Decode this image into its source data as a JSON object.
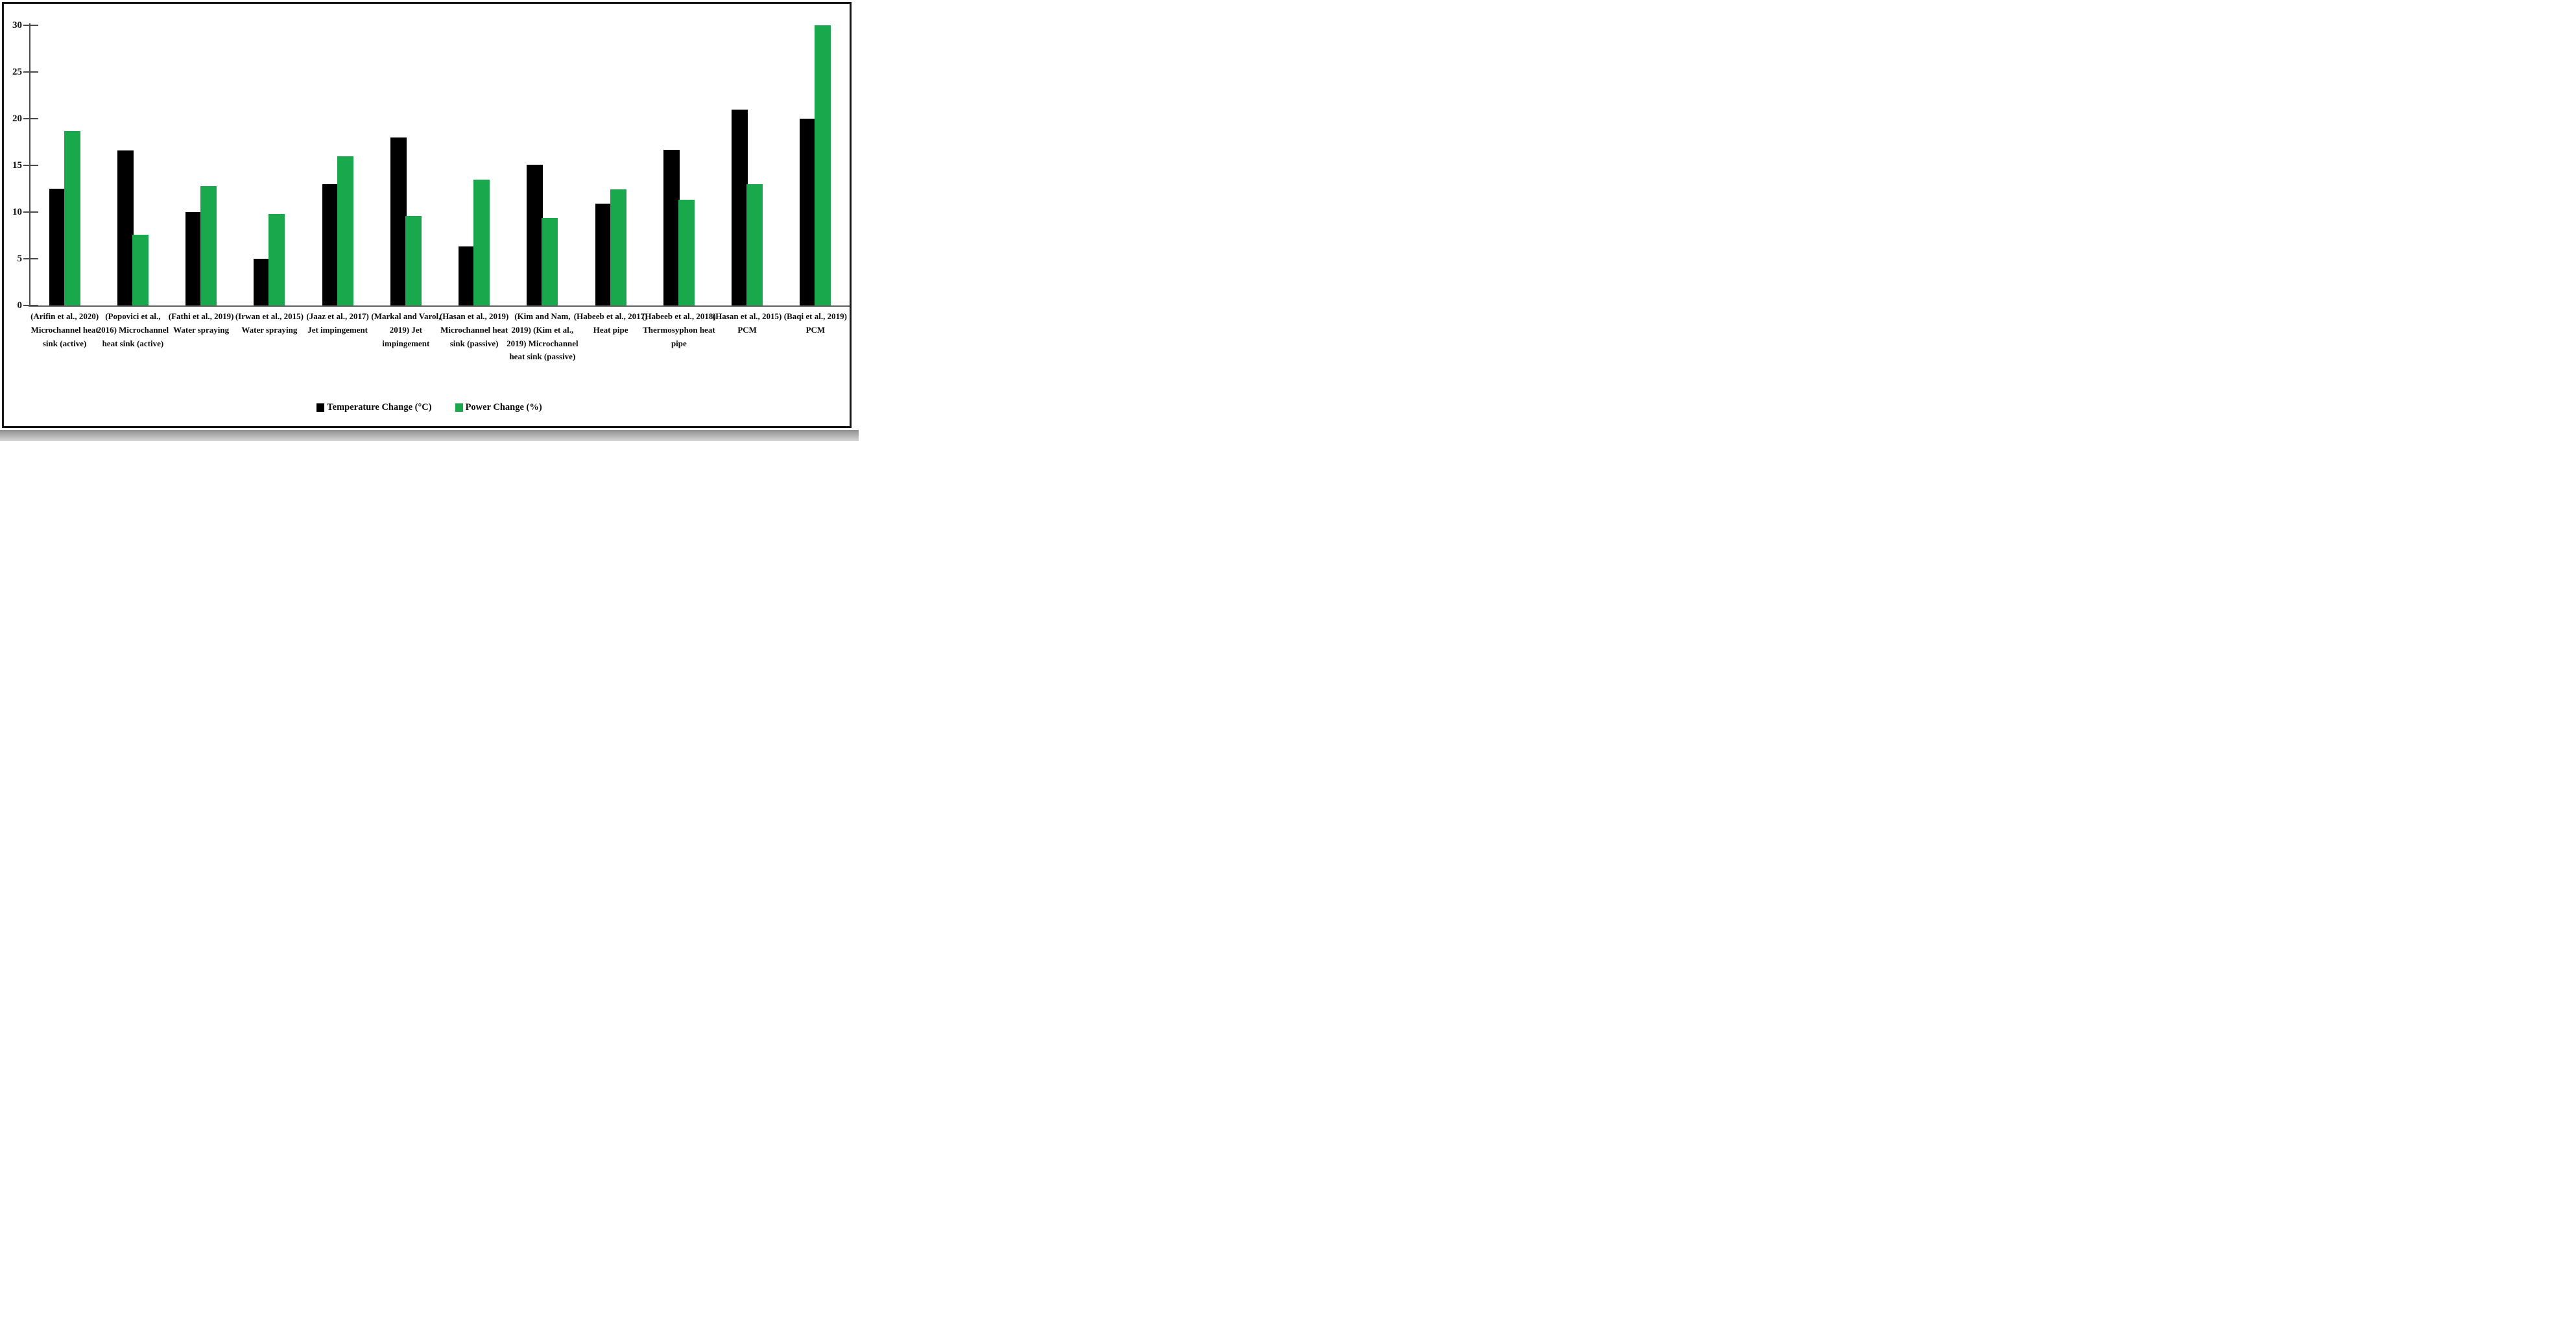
{
  "figure": {
    "legend": [
      {
        "label": "Temperature Change (°C)",
        "color": "#000000"
      },
      {
        "label": "Power Change (%)",
        "color": "#1aa84d"
      }
    ]
  },
  "chart_data": {
    "type": "bar",
    "title": "",
    "xlabel": "",
    "ylabel": "",
    "ylim": [
      0,
      30
    ],
    "yticks": [
      0,
      5,
      10,
      15,
      20,
      25,
      30
    ],
    "grid": false,
    "legend_position": "bottom",
    "categories": [
      "(Arifin et al., 2020) Microchannel heat sink (active)",
      "(Popovici et al., 2016) Microchannel heat sink (active)",
      "(Fathi et al., 2019) Water spraying",
      "(Irwan et al., 2015) Water spraying",
      "(Jaaz et al., 2017) Jet impingement",
      "(Markal and Varol, 2019) Jet impingement",
      "(Hasan et al., 2019) Microchannel heat sink (passive)",
      "(Kim and Nam, 2019) (Kim et al., 2019) Microchannel heat sink (passive)",
      "(Habeeb et al., 2017) Heat pipe",
      "(Habeeb et al., 2018) Thermosyphon heat pipe",
      "(Hasan et al., 2015) PCM",
      "(Baqi et al., 2019) PCM"
    ],
    "series": [
      {
        "name": "Temperature Change (°C)",
        "color": "#000000",
        "values": [
          12.5,
          16.6,
          10,
          5,
          13,
          18,
          6.3,
          15.1,
          10.9,
          16.7,
          21,
          20
        ]
      },
      {
        "name": "Power Change (%)",
        "color": "#1aa84d",
        "values": [
          18.7,
          7.6,
          12.8,
          9.8,
          16,
          9.6,
          13.5,
          9.4,
          12.4,
          11.3,
          13,
          30
        ]
      }
    ]
  }
}
